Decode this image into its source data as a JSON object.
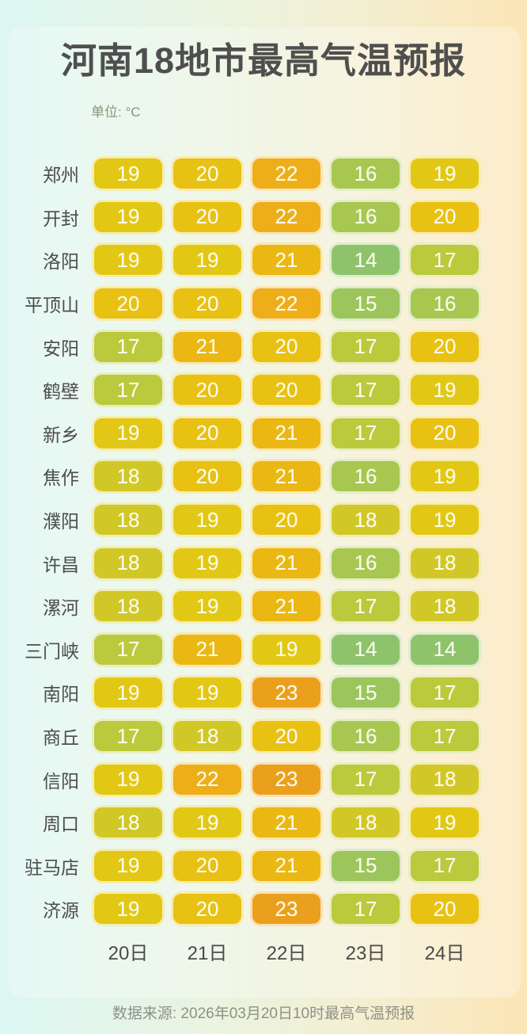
{
  "title": "河南18地市最高气温预报",
  "unit_label": "单位: °C",
  "footer": "数据来源: 2026年03月20日10时最高气温预报",
  "chart_data": {
    "type": "heatmap",
    "title": "河南18地市最高气温预报",
    "unit": "°C",
    "columns": [
      "20日",
      "21日",
      "22日",
      "23日",
      "24日"
    ],
    "rows": [
      {
        "city": "郑州",
        "values": [
          19,
          20,
          22,
          16,
          19
        ]
      },
      {
        "city": "开封",
        "values": [
          19,
          20,
          22,
          16,
          20
        ]
      },
      {
        "city": "洛阳",
        "values": [
          19,
          19,
          21,
          14,
          17
        ]
      },
      {
        "city": "平顶山",
        "values": [
          20,
          20,
          22,
          15,
          16
        ]
      },
      {
        "city": "安阳",
        "values": [
          17,
          21,
          20,
          17,
          20
        ]
      },
      {
        "city": "鹤壁",
        "values": [
          17,
          20,
          20,
          17,
          19
        ]
      },
      {
        "city": "新乡",
        "values": [
          19,
          20,
          21,
          17,
          20
        ]
      },
      {
        "city": "焦作",
        "values": [
          18,
          20,
          21,
          16,
          19
        ]
      },
      {
        "city": "濮阳",
        "values": [
          18,
          19,
          20,
          18,
          19
        ]
      },
      {
        "city": "许昌",
        "values": [
          18,
          19,
          21,
          16,
          18
        ]
      },
      {
        "city": "漯河",
        "values": [
          18,
          19,
          21,
          17,
          18
        ]
      },
      {
        "city": "三门峡",
        "values": [
          17,
          21,
          19,
          14,
          14
        ]
      },
      {
        "city": "南阳",
        "values": [
          19,
          19,
          23,
          15,
          17
        ]
      },
      {
        "city": "商丘",
        "values": [
          17,
          18,
          20,
          16,
          17
        ]
      },
      {
        "city": "信阳",
        "values": [
          19,
          22,
          23,
          17,
          18
        ]
      },
      {
        "city": "周口",
        "values": [
          18,
          19,
          21,
          18,
          19
        ]
      },
      {
        "city": "驻马店",
        "values": [
          19,
          20,
          21,
          15,
          17
        ]
      },
      {
        "city": "济源",
        "values": [
          19,
          20,
          23,
          17,
          20
        ]
      }
    ],
    "color_scale": {
      "14": "#8ec36c",
      "15": "#9cc55c",
      "16": "#a7c751",
      "17": "#bbc93d",
      "18": "#d1c827",
      "19": "#e2c814",
      "20": "#e8c112",
      "21": "#ebb712",
      "22": "#edae19",
      "23": "#eba01d"
    },
    "value_range": [
      14,
      23
    ],
    "legend": "none",
    "grid": false
  }
}
